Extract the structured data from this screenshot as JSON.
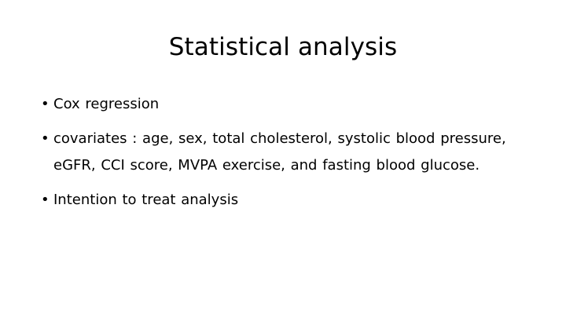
{
  "slide": {
    "title": "Statistical analysis",
    "bullet_symbol": "•",
    "bullets": [
      "Cox regression",
      "covariates : age, sex, total cholesterol, systolic blood pressure, eGFR, CCI score, MVPA exercise, and fasting blood glucose.",
      "Intention to treat analysis"
    ]
  }
}
